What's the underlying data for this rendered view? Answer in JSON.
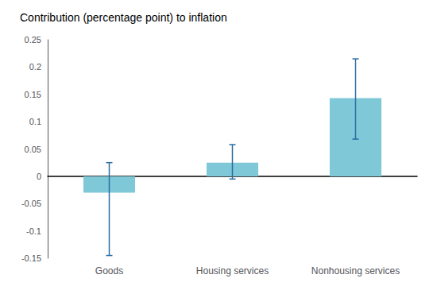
{
  "chart_data": {
    "type": "bar",
    "title": "Contribution (percentage point) to inflation",
    "categories": [
      "Goods",
      "Housing services",
      "Nonhousing services"
    ],
    "values": [
      -0.03,
      0.025,
      0.143
    ],
    "color": "#7EC8D8",
    "error_bars": {
      "lower": [
        0.115,
        0.03,
        0.075
      ],
      "upper": [
        0.055,
        0.033,
        0.072
      ],
      "color": "#2B6CA3"
    },
    "ylim": [
      -0.15,
      0.25
    ],
    "yticks": [
      -0.15,
      -0.1,
      -0.05,
      0,
      0.05,
      0.1,
      0.15,
      0.2,
      0.25
    ],
    "grid": false
  }
}
